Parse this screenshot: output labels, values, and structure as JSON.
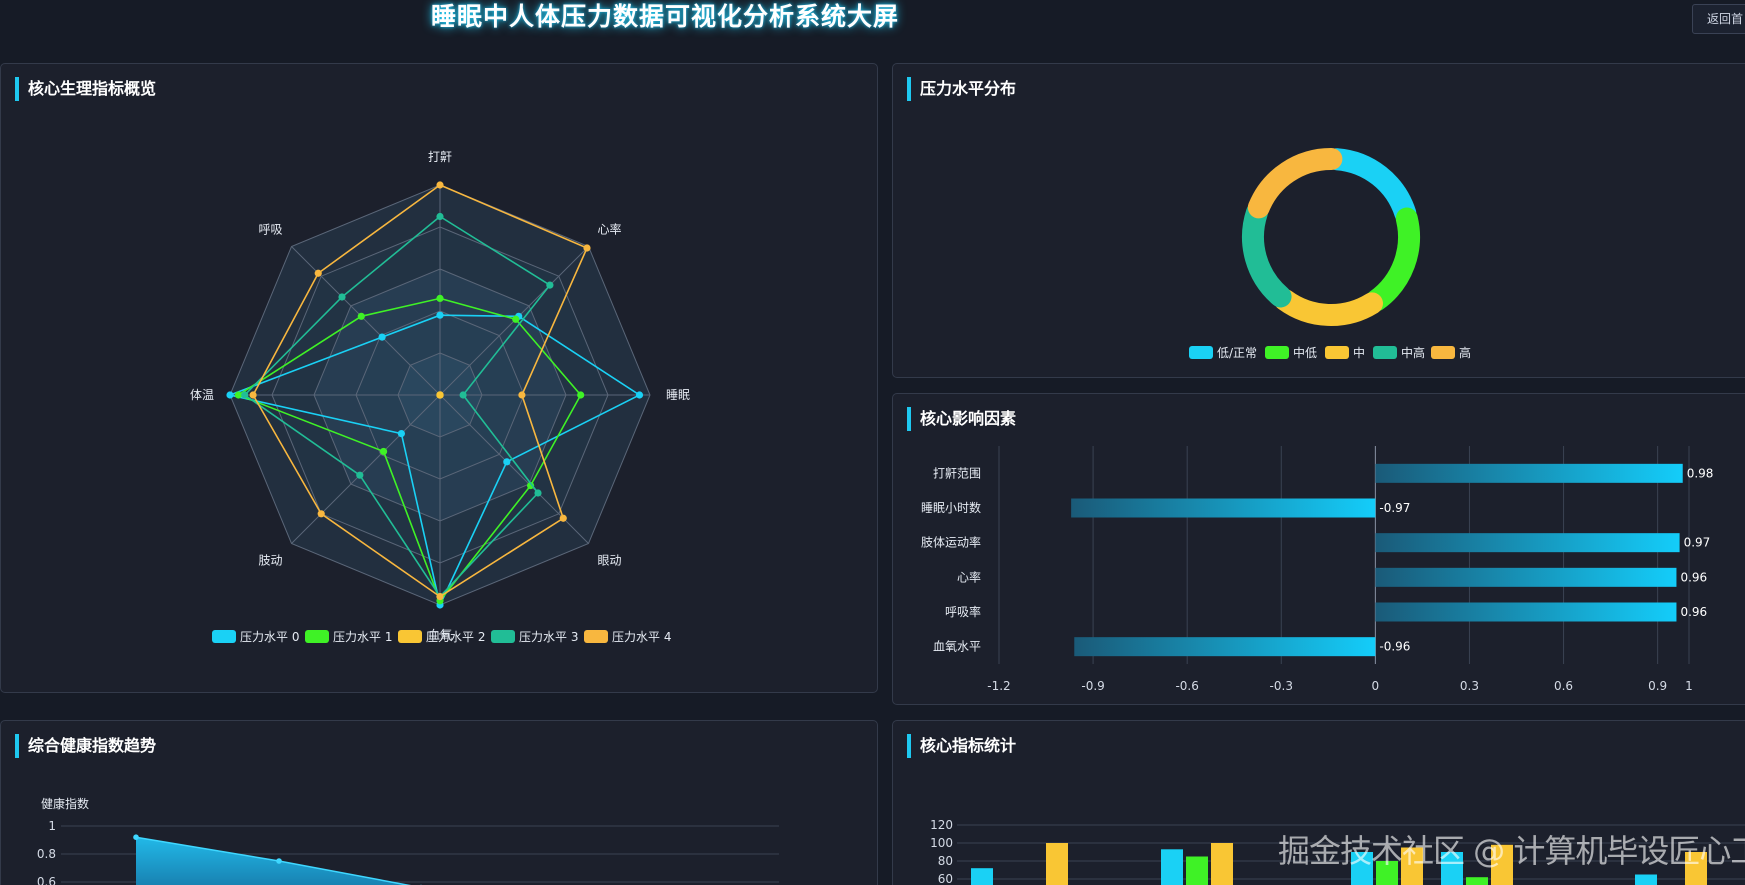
{
  "header": {
    "title": "睡眠中人体压力数据可视化分析系统大屏",
    "back_label": "返回首"
  },
  "panels": {
    "radar": {
      "title": "核心生理指标概览"
    },
    "donut": {
      "title": "压力水平分布"
    },
    "factors": {
      "title": "核心影响因素"
    },
    "trend": {
      "title": "综合健康指数趋势"
    },
    "stats": {
      "title": "核心指标统计"
    }
  },
  "colors": {
    "level0": "#1ad1f5",
    "level1": "#3ff226",
    "level2": "#f9c634",
    "level3": "#21bd96",
    "level4": "#f8b73f",
    "accent": "#1ec8f0"
  },
  "chart_data": [
    {
      "type": "radar",
      "indicators": [
        "打鼾",
        "心率",
        "睡眠",
        "眼动",
        "血氧",
        "肢动",
        "体温",
        "呼吸"
      ],
      "max": 1,
      "series": [
        {
          "name": "压力水平 0",
          "values": [
            0.38,
            0.53,
            0.95,
            0.45,
            1.0,
            0.26,
            1.0,
            0.39
          ]
        },
        {
          "name": "压力水平 1",
          "values": [
            0.46,
            0.51,
            0.67,
            0.61,
            0.98,
            0.38,
            0.96,
            0.53
          ]
        },
        {
          "name": "压力水平 2",
          "values": [
            0.0,
            0.0,
            0.0,
            0.0,
            0.0,
            0.0,
            0.0,
            0.0
          ]
        },
        {
          "name": "压力水平 3",
          "values": [
            0.85,
            0.74,
            0.11,
            0.66,
            0.96,
            0.54,
            0.93,
            0.66
          ]
        },
        {
          "name": "压力水平 4",
          "values": [
            1.0,
            0.99,
            0.39,
            0.83,
            0.96,
            0.8,
            0.89,
            0.82
          ]
        }
      ],
      "legend": "bottom"
    },
    {
      "type": "pie",
      "labels": [
        "低/正常",
        "中低",
        "中",
        "中高",
        "高"
      ],
      "values": [
        20,
        20,
        20,
        20,
        20
      ],
      "legend": "bottom"
    },
    {
      "type": "bar",
      "orientation": "horizontal",
      "categories": [
        "打鼾范围",
        "睡眠小时数",
        "肢体运动率",
        "心率",
        "呼吸率",
        "血氧水平"
      ],
      "values": [
        0.98,
        -0.97,
        0.97,
        0.96,
        0.96,
        -0.96
      ],
      "x_ticks": [
        "-1.2",
        "-0.9",
        "-0.6",
        "-0.3",
        "0",
        "0.3",
        "0.6",
        "0.9",
        "1"
      ],
      "xlim": [
        -1.2,
        1
      ]
    },
    {
      "type": "area",
      "ylabel": "健康指数",
      "y_ticks": [
        "1",
        "0.8",
        "0.6"
      ],
      "values": [
        0.92,
        0.75,
        0.56
      ]
    },
    {
      "type": "bar",
      "y_ticks": [
        "120",
        "100",
        "80",
        "60"
      ],
      "series": [
        {
          "name": "压力水平 0",
          "values": [
            72,
            93,
            90,
            90,
            65
          ]
        },
        {
          "name": "压力水平 1",
          "values": [
            0,
            85,
            80,
            62,
            0
          ]
        },
        {
          "name": "压力水平 2",
          "values": [
            100,
            100,
            95,
            98,
            90
          ]
        }
      ]
    }
  ]
}
